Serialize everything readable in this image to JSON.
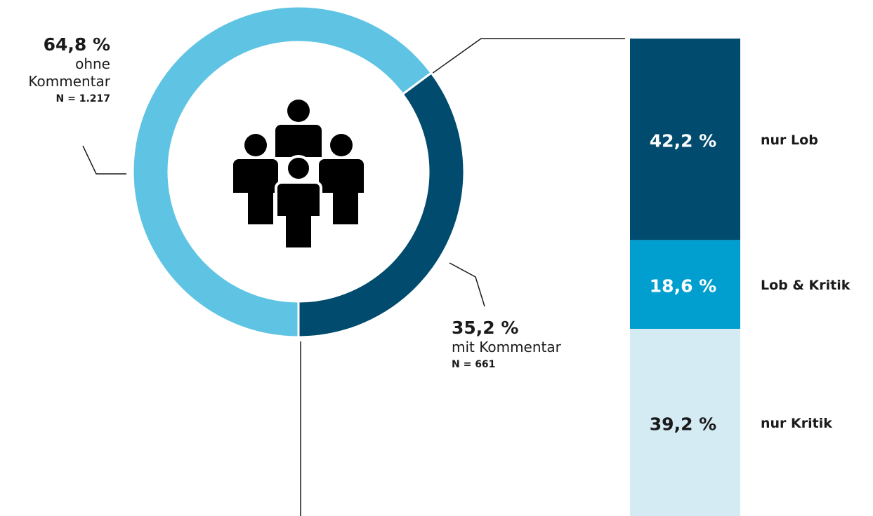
{
  "chart_data": [
    {
      "type": "donut",
      "categories": [
        "ohne Kommentar",
        "mit Kommentar"
      ],
      "values": [
        64.8,
        35.2
      ],
      "value_labels": [
        "64,8 %",
        "35,2 %"
      ],
      "n_labels": [
        "N = 1.217",
        "N = 661"
      ],
      "colors": [
        "#5fc4e3",
        "#004b6e"
      ]
    },
    {
      "type": "stacked-bar",
      "categories": [
        "nur Lob",
        "Lob & Kritik",
        "nur Kritik"
      ],
      "values": [
        42.2,
        18.6,
        39.2
      ],
      "value_labels": [
        "42,2 %",
        "18,6 %",
        "39,2 %"
      ],
      "colors": [
        "#004b6e",
        "#009fcf",
        "#d4ebf4"
      ],
      "label_colors": [
        "#ffffff",
        "#ffffff",
        "#1a1a1a"
      ]
    }
  ]
}
